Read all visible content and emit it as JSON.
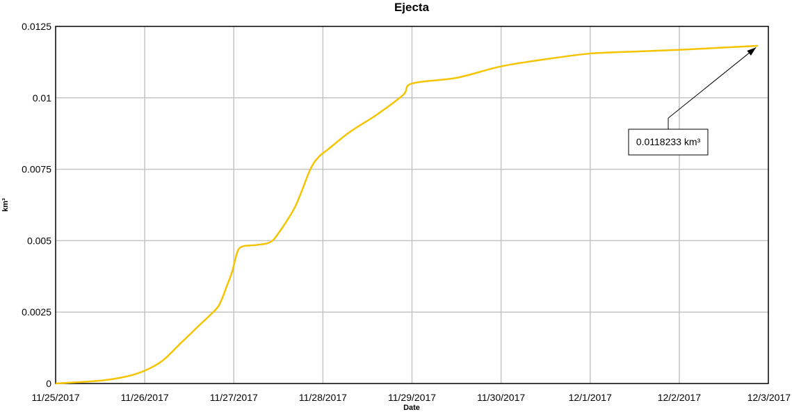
{
  "chart_data": {
    "type": "line",
    "title": "Ejecta",
    "xlabel": "Date",
    "ylabel": "km³",
    "x_tick_labels": [
      "11/25/2017",
      "11/26/2017",
      "11/27/2017",
      "11/28/2017",
      "11/29/2017",
      "11/30/2017",
      "12/1/2017",
      "12/2/2017",
      "12/3/2017"
    ],
    "y_tick_labels": [
      "0",
      "0.0025",
      "0.005",
      "0.0075",
      "0.01",
      "0.0125"
    ],
    "ylim": [
      0,
      0.0125
    ],
    "xlim": [
      "11/25/2017",
      "12/3/2017"
    ],
    "grid": true,
    "series": [
      {
        "color": "#f5c400",
        "x": [
          "11/25/2017 00:00",
          "11/25/2017 12:00",
          "11/25/2017 19:12",
          "11/26/2017 00:00",
          "11/26/2017 04:48",
          "11/26/2017 09:36",
          "11/26/2017 14:24",
          "11/26/2017 19:12",
          "11/26/2017 20:36",
          "11/26/2017 22:05",
          "11/26/2017 23:31",
          "11/27/2017 00:57",
          "11/27/2017 02:24",
          "11/27/2017 06:10",
          "11/27/2017 09:50",
          "11/27/2017 12:14",
          "11/27/2017 16:34",
          "11/27/2017 20:38",
          "11/27/2017 23:02",
          "11/28/2017 01:26",
          "11/28/2017 07:12",
          "11/28/2017 14:24",
          "11/28/2017 21:36",
          "11/29/2017 00:00",
          "11/29/2017 12:00",
          "11/30/2017 00:00",
          "11/30/2017 12:00",
          "12/1/2017 00:00",
          "12/1/2017 12:00",
          "12/2/2017 00:00",
          "12/2/2017 12:00",
          "12/2/2017 21:14"
        ],
        "values": [
          0,
          0.0001,
          0.00025,
          0.00045,
          0.0008,
          0.0014,
          0.002,
          0.0026,
          0.0029,
          0.0034,
          0.0039,
          0.0046,
          0.0048,
          0.00485,
          0.00495,
          0.0053,
          0.0062,
          0.0075,
          0.00795,
          0.0082,
          0.0088,
          0.0094,
          0.0101,
          0.0105,
          0.0107,
          0.0111,
          0.01135,
          0.01155,
          0.01162,
          0.01168,
          0.01176,
          0.0118233
        ]
      }
    ],
    "annotations": [
      {
        "text": "0.0118233 km³",
        "x": "12/2/2017 21:14",
        "y": 0.0118233
      }
    ]
  }
}
